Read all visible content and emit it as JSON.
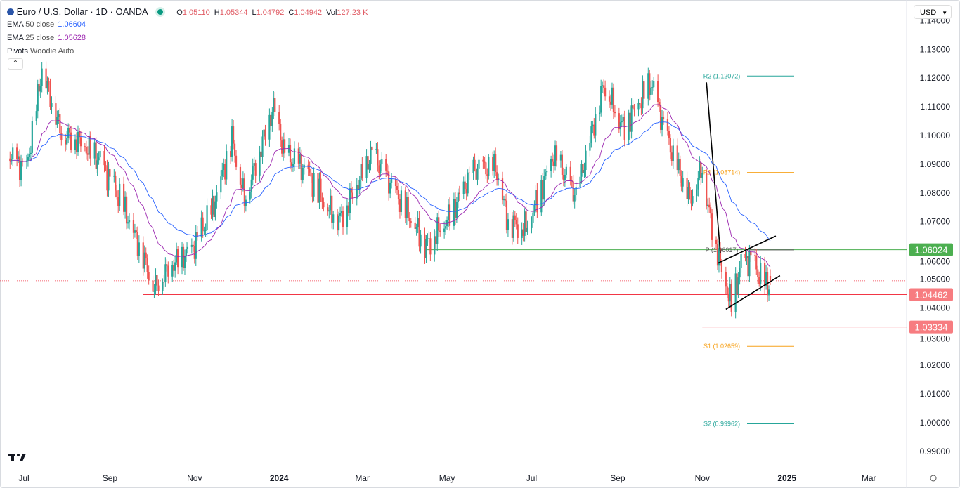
{
  "header": {
    "symbol": "Euro / U.S. Dollar · 1D · OANDA",
    "open_label": "O",
    "open": "1.05110",
    "high_label": "H",
    "high": "1.05344",
    "low_label": "L",
    "low": "1.04792",
    "close_label": "C",
    "close": "1.04942",
    "vol_label": "Vol",
    "vol": "127.23 K",
    "status_color": "#089981"
  },
  "indicators": [
    {
      "name": "EMA",
      "params": "50 close",
      "value": "1.06604",
      "color": "#2962ff"
    },
    {
      "name": "EMA",
      "params": "25 close",
      "value": "1.05628",
      "color": "#9c27b0"
    },
    {
      "name": "Pivots",
      "params": "Woodie Auto"
    }
  ],
  "currency": "USD",
  "chart_data": {
    "type": "candlestick",
    "ylim": [
      0.985,
      1.145
    ],
    "y_ticks": [
      "1.14000",
      "1.13000",
      "1.12000",
      "1.11000",
      "1.10000",
      "1.09000",
      "1.08000",
      "1.07000",
      "1.06000",
      "1.05000",
      "1.04000",
      "1.03000",
      "1.02000",
      "1.01000",
      "1.00000",
      "0.99000"
    ],
    "x_ticks": [
      {
        "label": "Jul",
        "date": "2023-07-01"
      },
      {
        "label": "Sep",
        "date": "2023-09-01"
      },
      {
        "label": "Nov",
        "date": "2023-11-01"
      },
      {
        "label": "2024",
        "date": "2024-01-01",
        "bold": true
      },
      {
        "label": "Mar",
        "date": "2024-03-01"
      },
      {
        "label": "May",
        "date": "2024-05-01"
      },
      {
        "label": "Jul",
        "date": "2024-07-01"
      },
      {
        "label": "Sep",
        "date": "2024-09-01"
      },
      {
        "label": "Nov",
        "date": "2024-11-01"
      },
      {
        "label": "2025",
        "date": "2025-01-01",
        "bold": true
      },
      {
        "label": "Mar",
        "date": "2025-03-01"
      }
    ],
    "close_path": [
      [
        "2023-06-21",
        1.092
      ],
      [
        "2023-07-03",
        1.088
      ],
      [
        "2023-07-14",
        1.123
      ],
      [
        "2023-07-28",
        1.101
      ],
      [
        "2023-08-10",
        1.098
      ],
      [
        "2023-08-25",
        1.091
      ],
      [
        "2023-09-10",
        1.076
      ],
      [
        "2023-09-25",
        1.058
      ],
      [
        "2023-10-03",
        1.047
      ],
      [
        "2023-10-15",
        1.055
      ],
      [
        "2023-10-30",
        1.06
      ],
      [
        "2023-11-14",
        1.074
      ],
      [
        "2023-11-28",
        1.099
      ],
      [
        "2023-12-07",
        1.078
      ],
      [
        "2023-12-28",
        1.11
      ],
      [
        "2024-01-05",
        1.093
      ],
      [
        "2024-01-20",
        1.088
      ],
      [
        "2024-02-05",
        1.075
      ],
      [
        "2024-02-14",
        1.071
      ],
      [
        "2024-03-08",
        1.094
      ],
      [
        "2024-03-25",
        1.08
      ],
      [
        "2024-04-16",
        1.062
      ],
      [
        "2024-05-03",
        1.072
      ],
      [
        "2024-05-20",
        1.088
      ],
      [
        "2024-06-05",
        1.089
      ],
      [
        "2024-06-14",
        1.07
      ],
      [
        "2024-06-27",
        1.068
      ],
      [
        "2024-07-17",
        1.093
      ],
      [
        "2024-08-02",
        1.079
      ],
      [
        "2024-08-22",
        1.118
      ],
      [
        "2024-09-05",
        1.103
      ],
      [
        "2024-09-25",
        1.118
      ],
      [
        "2024-10-10",
        1.094
      ],
      [
        "2024-10-23",
        1.078
      ],
      [
        "2024-11-01",
        1.089
      ],
      [
        "2024-11-06",
        1.073
      ],
      [
        "2024-11-14",
        1.055
      ],
      [
        "2024-11-22",
        1.041
      ],
      [
        "2024-11-29",
        1.055
      ],
      [
        "2024-12-06",
        1.057
      ],
      [
        "2024-12-11",
        1.052
      ],
      [
        "2024-12-18",
        1.047
      ],
      [
        "2024-12-20",
        1.0494
      ]
    ],
    "ema_periods": [
      50,
      25
    ],
    "pivots": [
      {
        "label": "R2",
        "value": "1.12072",
        "color": "#26a69a"
      },
      {
        "label": "R1",
        "value": "1.08714",
        "color": "#f7a21b"
      },
      {
        "label": "P",
        "value": "1.06017",
        "color": "#555555"
      },
      {
        "label": "S1",
        "value": "1.02659",
        "color": "#f7a21b"
      },
      {
        "label": "S2",
        "value": "0.99962",
        "color": "#26a69a"
      }
    ],
    "levels": [
      {
        "value": "1.06024",
        "color": "#4caf50",
        "from": "2024-04-16"
      },
      {
        "value": "1.04462",
        "color": "#f23645",
        "from": "2023-09-25"
      },
      {
        "value": "1.03334",
        "color": "#f23645",
        "from": "2024-11-01"
      }
    ],
    "current_price": 1.04942,
    "trendlines": [
      [
        [
          "2024-11-04",
          1.1185
        ],
        [
          "2024-11-14",
          1.059
        ]
      ],
      [
        [
          "2024-11-12",
          1.0555
        ],
        [
          "2024-12-24",
          1.065
        ]
      ],
      [
        [
          "2024-11-18",
          1.0395
        ],
        [
          "2024-12-27",
          1.0512
        ]
      ]
    ],
    "up_color": "#26a69a",
    "down_color": "#ef5350"
  }
}
